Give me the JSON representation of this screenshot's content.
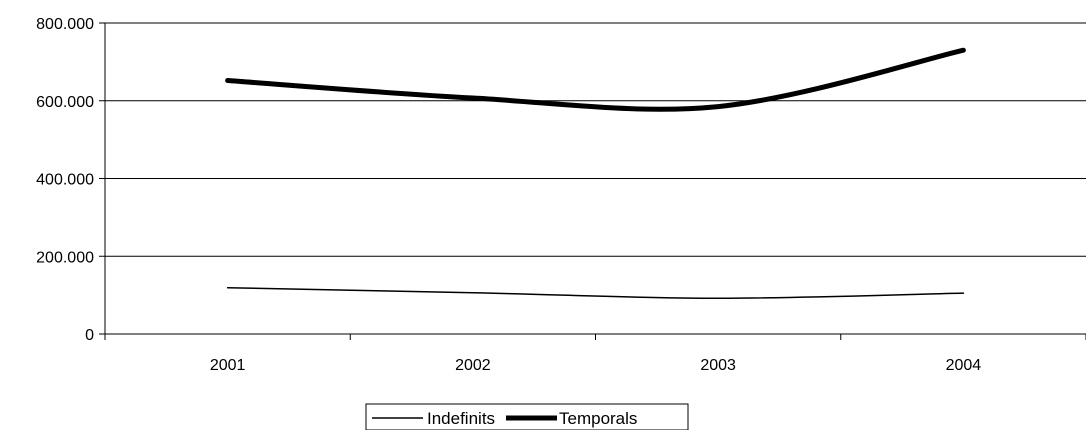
{
  "chart_data": {
    "type": "line",
    "title": "",
    "xlabel": "",
    "ylabel": "",
    "categories": [
      "2001",
      "2002",
      "2003",
      "2004"
    ],
    "ylim": [
      0,
      800000
    ],
    "yticks": [
      0,
      200000,
      400000,
      600000,
      800000
    ],
    "ytick_labels": [
      "0",
      "200.000",
      "400.000",
      "600.000",
      "800.000"
    ],
    "grid": "horizontal",
    "legend_position": "bottom",
    "series": [
      {
        "name": "Indefinits",
        "values": [
          119000,
          106000,
          92000,
          105000
        ],
        "color": "#000000",
        "line": "thin"
      },
      {
        "name": "Temporals",
        "values": [
          652000,
          607000,
          585000,
          730000
        ],
        "color": "#000000",
        "line": "thick"
      }
    ]
  }
}
